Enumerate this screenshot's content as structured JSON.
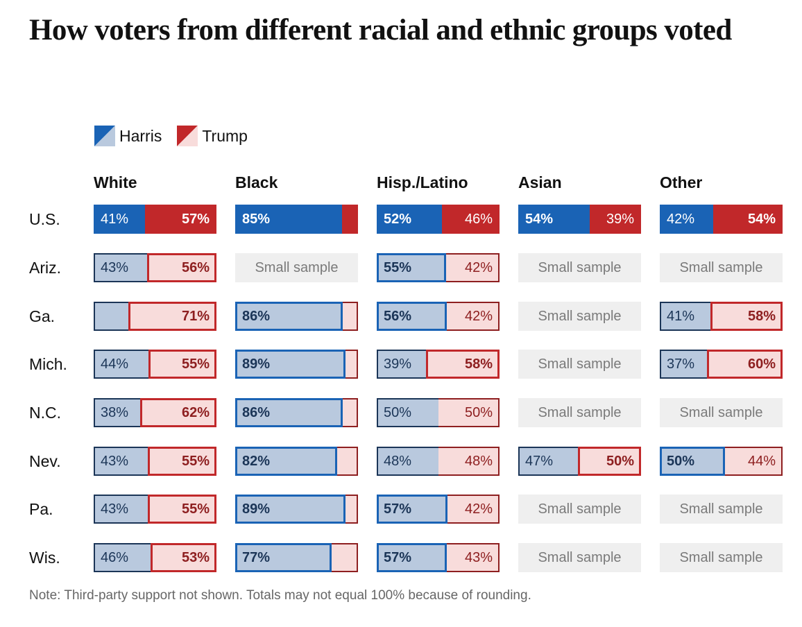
{
  "title": "How voters from different racial and ethnic groups voted",
  "legend": [
    {
      "name": "Harris",
      "dark": "#1a63b5",
      "light": "#b9c9de"
    },
    {
      "name": "Trump",
      "dark": "#c1282a",
      "light": "#f8dcdb"
    }
  ],
  "colors": {
    "harris_dark": "#1a63b5",
    "harris_light": "#b9c9de",
    "harris_text_dark": "#1b3557",
    "harris_border_loser": "#1b3557",
    "trump_dark": "#c1282a",
    "trump_light": "#f8dcdb",
    "trump_text_dark": "#8e1f20",
    "trump_border_loser": "#8e1f20",
    "small_sample_bg": "#efefef",
    "small_sample_text": "#7a7a7a"
  },
  "small_sample_label": "Small sample",
  "note": "Note: Third-party support not shown. Totals may not equal 100% because of rounding.",
  "chart_data": {
    "type": "table",
    "title": "How voters from different racial and ethnic groups voted",
    "series": [
      "Harris",
      "Trump"
    ],
    "columns": [
      "White",
      "Black",
      "Hisp./Latino",
      "Asian",
      "Other"
    ],
    "rows": [
      {
        "label": "U.S.",
        "national": true,
        "cells": [
          {
            "harris": 41,
            "trump": 57,
            "harris_label": "41%",
            "trump_label": "57%"
          },
          {
            "harris": 85,
            "trump": 13,
            "harris_label": "85%",
            "trump_label": ""
          },
          {
            "harris": 52,
            "trump": 46,
            "harris_label": "52%",
            "trump_label": "46%"
          },
          {
            "harris": 54,
            "trump": 39,
            "harris_label": "54%",
            "trump_label": "39%"
          },
          {
            "harris": 42,
            "trump": 54,
            "harris_label": "42%",
            "trump_label": "54%"
          }
        ]
      },
      {
        "label": "Ariz.",
        "national": false,
        "cells": [
          {
            "harris": 43,
            "trump": 56,
            "harris_label": "43%",
            "trump_label": "56%"
          },
          null,
          {
            "harris": 55,
            "trump": 42,
            "harris_label": "55%",
            "trump_label": "42%"
          },
          null,
          null
        ]
      },
      {
        "label": "Ga.",
        "national": false,
        "cells": [
          {
            "harris": 28,
            "trump": 71,
            "harris_label": "",
            "trump_label": "71%"
          },
          {
            "harris": 86,
            "trump": 12,
            "harris_label": "86%",
            "trump_label": ""
          },
          {
            "harris": 56,
            "trump": 42,
            "harris_label": "56%",
            "trump_label": "42%"
          },
          null,
          {
            "harris": 41,
            "trump": 58,
            "harris_label": "41%",
            "trump_label": "58%"
          }
        ]
      },
      {
        "label": "Mich.",
        "national": false,
        "cells": [
          {
            "harris": 44,
            "trump": 55,
            "harris_label": "44%",
            "trump_label": "55%"
          },
          {
            "harris": 89,
            "trump": 10,
            "harris_label": "89%",
            "trump_label": ""
          },
          {
            "harris": 39,
            "trump": 58,
            "harris_label": "39%",
            "trump_label": "58%"
          },
          null,
          {
            "harris": 37,
            "trump": 60,
            "harris_label": "37%",
            "trump_label": "60%"
          }
        ]
      },
      {
        "label": "N.C.",
        "national": false,
        "cells": [
          {
            "harris": 38,
            "trump": 62,
            "harris_label": "38%",
            "trump_label": "62%"
          },
          {
            "harris": 86,
            "trump": 12,
            "harris_label": "86%",
            "trump_label": ""
          },
          {
            "harris": 50,
            "trump": 50,
            "harris_label": "50%",
            "trump_label": "50%"
          },
          null,
          null
        ]
      },
      {
        "label": "Nev.",
        "national": false,
        "cells": [
          {
            "harris": 43,
            "trump": 55,
            "harris_label": "43%",
            "trump_label": "55%"
          },
          {
            "harris": 82,
            "trump": 17,
            "harris_label": "82%",
            "trump_label": ""
          },
          {
            "harris": 48,
            "trump": 48,
            "harris_label": "48%",
            "trump_label": "48%"
          },
          {
            "harris": 47,
            "trump": 50,
            "harris_label": "47%",
            "trump_label": "50%"
          },
          {
            "harris": 50,
            "trump": 44,
            "harris_label": "50%",
            "trump_label": "44%"
          }
        ]
      },
      {
        "label": "Pa.",
        "national": false,
        "cells": [
          {
            "harris": 43,
            "trump": 55,
            "harris_label": "43%",
            "trump_label": "55%"
          },
          {
            "harris": 89,
            "trump": 10,
            "harris_label": "89%",
            "trump_label": ""
          },
          {
            "harris": 57,
            "trump": 42,
            "harris_label": "57%",
            "trump_label": "42%"
          },
          null,
          null
        ]
      },
      {
        "label": "Wis.",
        "national": false,
        "cells": [
          {
            "harris": 46,
            "trump": 53,
            "harris_label": "46%",
            "trump_label": "53%"
          },
          {
            "harris": 77,
            "trump": 21,
            "harris_label": "77%",
            "trump_label": ""
          },
          {
            "harris": 57,
            "trump": 43,
            "harris_label": "57%",
            "trump_label": "43%"
          },
          null,
          null
        ]
      }
    ]
  }
}
